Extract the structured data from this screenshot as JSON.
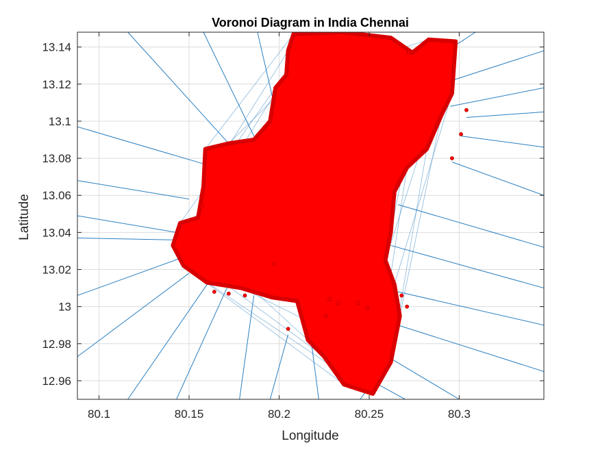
{
  "chart_data": {
    "type": "scatter",
    "title": "Voronoi Diagram in India Chennai",
    "xlabel": "Longitude",
    "ylabel": "Latitude",
    "xlim": [
      80.088,
      80.347
    ],
    "ylim": [
      12.95,
      13.148
    ],
    "grid": true,
    "x_ticks": [
      80.1,
      80.15,
      80.2,
      80.25,
      80.3
    ],
    "x_tick_labels": [
      "80.1",
      "80.15",
      "80.2",
      "80.25",
      "80.3"
    ],
    "y_ticks": [
      12.96,
      12.98,
      13.0,
      13.02,
      13.04,
      13.06,
      13.08,
      13.1,
      13.12,
      13.14
    ],
    "y_tick_labels": [
      "12.96",
      "12.98",
      "13",
      "13.02",
      "13.04",
      "13.06",
      "13.08",
      "13.1",
      "13.12",
      "13.14"
    ],
    "colors": {
      "points": "#ff0000",
      "voronoi_edges": "#2a7fc0",
      "grid": "#dcdcdc",
      "axis": "#262626"
    },
    "point_region_outline": [
      [
        80.208,
        13.147
      ],
      [
        80.235,
        13.148
      ],
      [
        80.262,
        13.145
      ],
      [
        80.274,
        13.137
      ],
      [
        80.283,
        13.144
      ],
      [
        80.298,
        13.143
      ],
      [
        80.296,
        13.115
      ],
      [
        80.29,
        13.103
      ],
      [
        80.282,
        13.085
      ],
      [
        80.271,
        13.075
      ],
      [
        80.264,
        13.062
      ],
      [
        80.262,
        13.04
      ],
      [
        80.259,
        13.025
      ],
      [
        80.264,
        13.012
      ],
      [
        80.267,
        12.995
      ],
      [
        80.262,
        12.97
      ],
      [
        80.252,
        12.953
      ],
      [
        80.236,
        12.958
      ],
      [
        80.225,
        12.973
      ],
      [
        80.216,
        12.982
      ],
      [
        80.21,
        13.003
      ],
      [
        80.196,
        13.005
      ],
      [
        80.179,
        13.01
      ],
      [
        80.16,
        13.013
      ],
      [
        80.147,
        13.022
      ],
      [
        80.141,
        13.033
      ],
      [
        80.145,
        13.045
      ],
      [
        80.155,
        13.048
      ],
      [
        80.158,
        13.065
      ],
      [
        80.159,
        13.085
      ],
      [
        80.172,
        13.088
      ],
      [
        80.186,
        13.09
      ],
      [
        80.195,
        13.1
      ],
      [
        80.198,
        13.118
      ],
      [
        80.204,
        13.125
      ],
      [
        80.205,
        13.138
      ]
    ],
    "outlier_points": [
      [
        80.304,
        13.106
      ],
      [
        80.301,
        13.093
      ],
      [
        80.296,
        13.08
      ],
      [
        80.272,
        13.137
      ],
      [
        80.157,
        13.054
      ],
      [
        80.164,
        13.008
      ],
      [
        80.172,
        13.007
      ],
      [
        80.181,
        13.006
      ],
      [
        80.197,
        13.023
      ],
      [
        80.205,
        12.988
      ],
      [
        80.228,
        13.004
      ],
      [
        80.233,
        13.002
      ],
      [
        80.244,
        13.002
      ],
      [
        80.249,
        12.999
      ],
      [
        80.268,
        13.006
      ],
      [
        80.271,
        13.0
      ],
      [
        80.226,
        12.995
      ]
    ],
    "voronoi_ray_lines": [
      [
        [
          80.088,
          13.097
        ],
        [
          80.158,
          13.077
        ]
      ],
      [
        [
          80.088,
          13.068
        ],
        [
          80.15,
          13.058
        ]
      ],
      [
        [
          80.088,
          13.049
        ],
        [
          80.143,
          13.04
        ]
      ],
      [
        [
          80.088,
          13.037
        ],
        [
          80.141,
          13.036
        ]
      ],
      [
        [
          80.088,
          13.006
        ],
        [
          80.145,
          13.026
        ]
      ],
      [
        [
          80.088,
          12.973
        ],
        [
          80.15,
          13.018
        ]
      ],
      [
        [
          80.116,
          12.95
        ],
        [
          80.16,
          13.012
        ]
      ],
      [
        [
          80.143,
          12.95
        ],
        [
          80.171,
          13.01
        ]
      ],
      [
        [
          80.178,
          12.95
        ],
        [
          80.186,
          13.006
        ]
      ],
      [
        [
          80.195,
          12.95
        ],
        [
          80.205,
          12.985
        ]
      ],
      [
        [
          80.222,
          12.95
        ],
        [
          80.218,
          12.98
        ]
      ],
      [
        [
          80.116,
          13.148
        ],
        [
          80.172,
          13.088
        ]
      ],
      [
        [
          80.158,
          13.148
        ],
        [
          80.186,
          13.092
        ]
      ],
      [
        [
          80.188,
          13.148
        ],
        [
          80.197,
          13.11
        ]
      ],
      [
        [
          80.222,
          13.148
        ],
        [
          80.22,
          13.146
        ]
      ],
      [
        [
          80.347,
          13.138
        ],
        [
          80.296,
          13.122
        ]
      ],
      [
        [
          80.347,
          13.118
        ],
        [
          80.295,
          13.108
        ]
      ],
      [
        [
          80.347,
          13.105
        ],
        [
          80.304,
          13.102
        ]
      ],
      [
        [
          80.347,
          13.086
        ],
        [
          80.301,
          13.092
        ]
      ],
      [
        [
          80.347,
          13.06
        ],
        [
          80.296,
          13.078
        ]
      ],
      [
        [
          80.347,
          13.032
        ],
        [
          80.266,
          13.055
        ]
      ],
      [
        [
          80.347,
          13.01
        ],
        [
          80.262,
          13.033
        ]
      ],
      [
        [
          80.347,
          12.99
        ],
        [
          80.266,
          13.008
        ]
      ],
      [
        [
          80.347,
          12.965
        ],
        [
          80.266,
          12.99
        ]
      ],
      [
        [
          80.3,
          12.95
        ],
        [
          80.262,
          12.972
        ]
      ],
      [
        [
          80.27,
          12.95
        ],
        [
          80.255,
          12.958
        ]
      ],
      [
        [
          80.309,
          13.148
        ],
        [
          80.298,
          13.141
        ]
      ],
      [
        [
          80.245,
          12.95
        ],
        [
          80.248,
          12.954
        ]
      ]
    ]
  }
}
